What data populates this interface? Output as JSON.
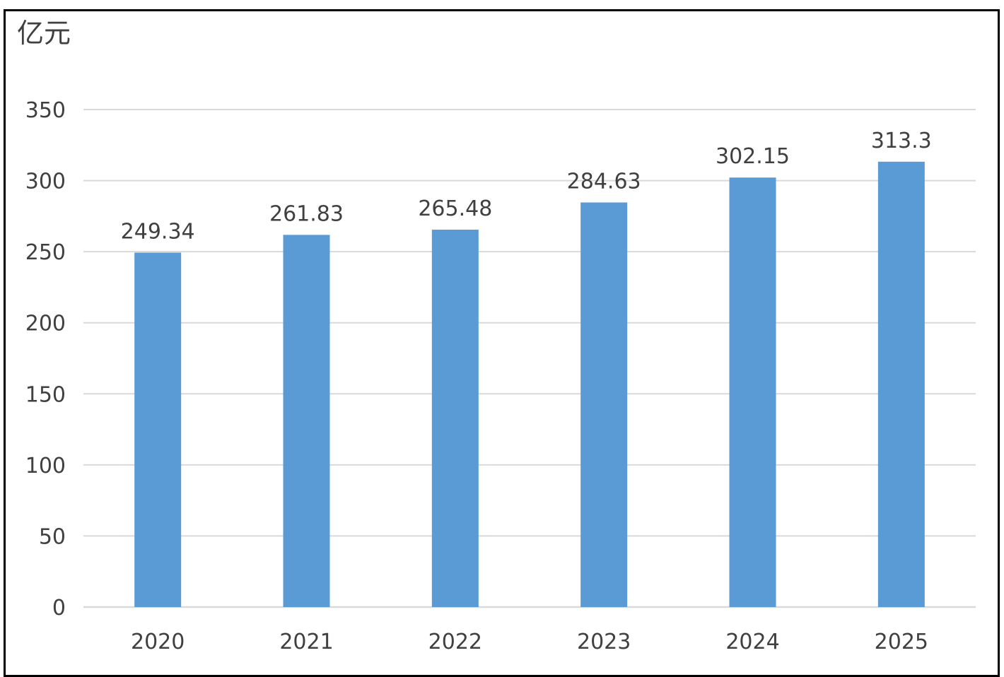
{
  "chart_data": {
    "type": "bar",
    "unit_label": "亿元",
    "categories": [
      "2020",
      "2021",
      "2022",
      "2023",
      "2024",
      "2025"
    ],
    "values": [
      249.34,
      261.83,
      265.48,
      284.63,
      302.15,
      313.3
    ],
    "data_labels": [
      "249.34",
      "261.83",
      "265.48",
      "284.63",
      "302.15",
      "313.3"
    ],
    "y_ticks": [
      "0",
      "50",
      "100",
      "150",
      "200",
      "250",
      "300",
      "350"
    ],
    "ylim": [
      0,
      350
    ],
    "grid": true,
    "legend": "none",
    "bar_color": "#5B9BD5",
    "grid_color": "#D9D9D9"
  }
}
